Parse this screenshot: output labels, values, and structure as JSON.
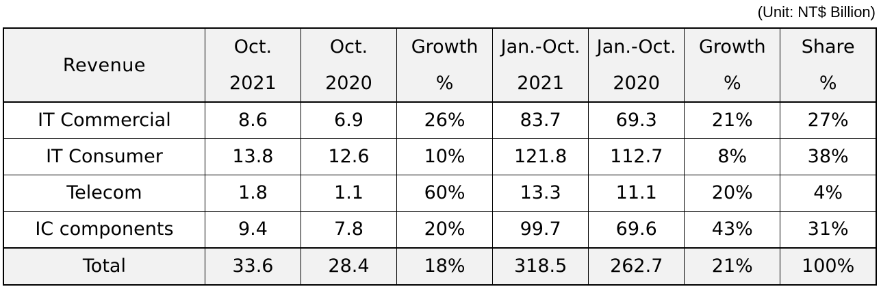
{
  "unit_note": "(Unit: NT$ Billion)",
  "header": {
    "label": "Revenue",
    "columns": [
      {
        "line1": "Oct.",
        "line2": "2021"
      },
      {
        "line1": "Oct.",
        "line2": "2020"
      },
      {
        "line1": "Growth",
        "line2": "%"
      },
      {
        "line1": "Jan.-Oct.",
        "line2": "2021"
      },
      {
        "line1": "Jan.-Oct.",
        "line2": "2020"
      },
      {
        "line1": "Growth",
        "line2": "%"
      },
      {
        "line1": "Share",
        "line2": "%"
      }
    ]
  },
  "rows": [
    {
      "label": "IT Commercial",
      "values": [
        "8.6",
        "6.9",
        "26%",
        "83.7",
        "69.3",
        "21%",
        "27%"
      ]
    },
    {
      "label": "IT Consumer",
      "values": [
        "13.8",
        "12.6",
        "10%",
        "121.8",
        "112.7",
        "8%",
        "38%"
      ]
    },
    {
      "label": "Telecom",
      "values": [
        "1.8",
        "1.1",
        "60%",
        "13.3",
        "11.1",
        "20%",
        "4%"
      ]
    },
    {
      "label": "IC components",
      "values": [
        "9.4",
        "7.8",
        "20%",
        "99.7",
        "69.6",
        "43%",
        "31%"
      ]
    }
  ],
  "total": {
    "label": "Total",
    "values": [
      "33.6",
      "28.4",
      "18%",
      "318.5",
      "262.7",
      "21%",
      "100%"
    ]
  },
  "colors": {
    "header_bg": "#f2f2f2",
    "border": "#000000",
    "text": "#000000"
  }
}
